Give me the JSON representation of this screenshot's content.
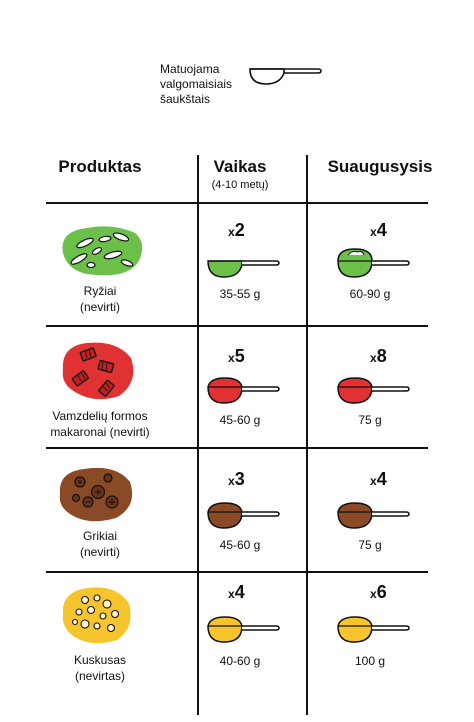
{
  "legend": {
    "lines": [
      "Matuojama",
      "valgomaisiais",
      "šaukštais"
    ],
    "icon": "tablespoon-icon"
  },
  "headers": {
    "product": "Produktas",
    "child": "Vaikas",
    "child_sub": "(4-10 metų)",
    "adult": "Suaugusysis"
  },
  "rows": [
    {
      "name_lines": [
        "Ryžiai",
        "(nevirti)"
      ],
      "icon": "rice-icon",
      "color": "#6cc04a",
      "child": {
        "x": "x",
        "count": "2",
        "grams": "35-55 g"
      },
      "adult": {
        "x": "x",
        "count": "4",
        "grams": "60-90 g"
      }
    },
    {
      "name_lines": [
        "Vamzdelių formos",
        "makaronai (nevirti)"
      ],
      "icon": "pasta-icon",
      "color": "#e03232",
      "child": {
        "x": "x",
        "count": "5",
        "grams": "45-60 g"
      },
      "adult": {
        "x": "x",
        "count": "8",
        "grams": "75 g"
      }
    },
    {
      "name_lines": [
        "Grikiai",
        "(nevirti)"
      ],
      "icon": "buckwheat-icon",
      "color": "#8b4a26",
      "child": {
        "x": "x",
        "count": "3",
        "grams": "45-60 g"
      },
      "adult": {
        "x": "x",
        "count": "4",
        "grams": "75 g"
      }
    },
    {
      "name_lines": [
        "Kuskusas",
        "(nevirtas)"
      ],
      "icon": "couscous-icon",
      "color": "#f6c42c",
      "child": {
        "x": "x",
        "count": "4",
        "grams": "40-60 g"
      },
      "adult": {
        "x": "x",
        "count": "6",
        "grams": "100 g"
      }
    }
  ]
}
